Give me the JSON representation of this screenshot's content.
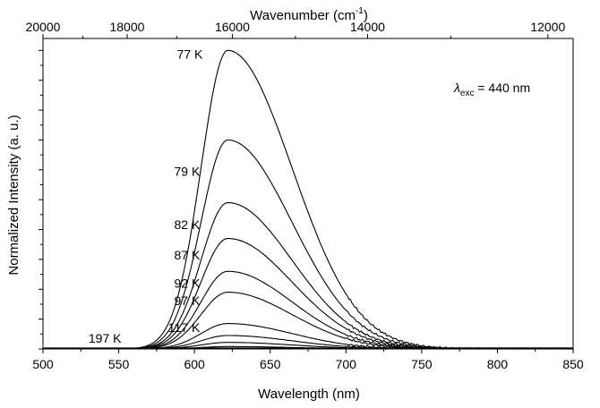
{
  "chart_data": {
    "type": "line",
    "xlabel": "Wavelength (nm)",
    "ylabel": "Normalized Intensity (a. u.)",
    "top_axis_label": "Wavenumber (cm",
    "top_axis_label_sup": "-1",
    "top_axis_label_close": ")",
    "xlim": [
      500,
      850
    ],
    "ylim": [
      0,
      1.04
    ],
    "x_ticks": [
      500,
      550,
      600,
      650,
      700,
      750,
      800,
      850
    ],
    "x_tick_labels": [
      "500",
      "550",
      "600",
      "650",
      "700",
      "750",
      "800",
      "850"
    ],
    "top_ticks": [
      20000,
      18000,
      16000,
      14000,
      12000
    ],
    "top_tick_labels": [
      "20000",
      "18000",
      "16000",
      "14000",
      "12000"
    ],
    "grid": false,
    "annotation": {
      "lambda": "λ",
      "sub": "exc",
      "rest": " = 440 nm"
    },
    "peak_wavelength": 622,
    "series": [
      {
        "name": "77 K",
        "peak": 1.0
      },
      {
        "name": "79 K",
        "peak": 0.7
      },
      {
        "name": "82 K",
        "peak": 0.49
      },
      {
        "name": "87 K",
        "peak": 0.37
      },
      {
        "name": "92 K",
        "peak": 0.26
      },
      {
        "name": "97 K",
        "peak": 0.19
      },
      {
        "name": "117 K",
        "peak": 0.085
      },
      {
        "name": "",
        "peak": 0.045
      },
      {
        "name": "",
        "peak": 0.022
      },
      {
        "name": "197 K",
        "peak": 0.008
      }
    ],
    "label_text": [
      "77 K",
      "79 K",
      "82 K",
      "87 K",
      "92 K",
      "97 K",
      "117 K",
      "197 K"
    ]
  }
}
